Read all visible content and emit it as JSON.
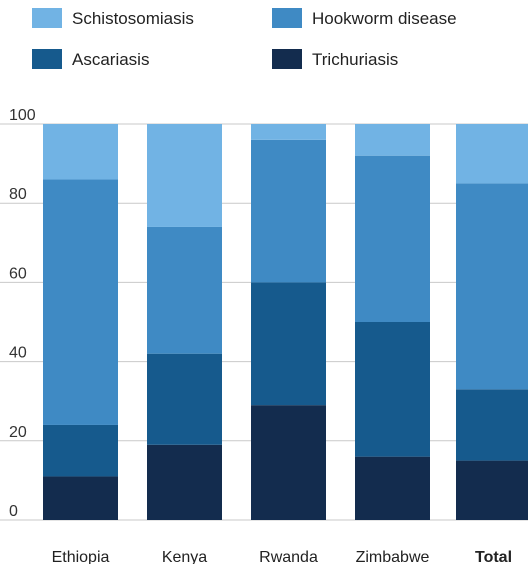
{
  "chart_data": {
    "type": "bar",
    "stacked": true,
    "categories": [
      "Ethiopia",
      "Kenya",
      "Rwanda",
      "Zimbabwe",
      "Total"
    ],
    "series": [
      {
        "name": "Trichuriasis",
        "color": "#132c4e",
        "values": [
          11,
          19,
          29,
          16,
          15
        ]
      },
      {
        "name": "Ascariasis",
        "color": "#165a8d",
        "values": [
          13,
          23,
          31,
          34,
          18
        ]
      },
      {
        "name": "Hookworm disease",
        "color": "#3f8ac4",
        "values": [
          62,
          32,
          36,
          42,
          52
        ]
      },
      {
        "name": "Schistosomiasis",
        "color": "#71b3e4",
        "values": [
          14,
          26,
          4,
          8,
          15
        ]
      }
    ],
    "legend": [
      "Schistosomiasis",
      "Hookworm disease",
      "Ascariasis",
      "Trichuriasis"
    ],
    "ylim": [
      0,
      100
    ],
    "yticks": [
      "0",
      "20",
      "40",
      "60",
      "80",
      "100"
    ],
    "grid": true,
    "legend_placement": "top",
    "bold_categories": [
      "Total"
    ]
  }
}
